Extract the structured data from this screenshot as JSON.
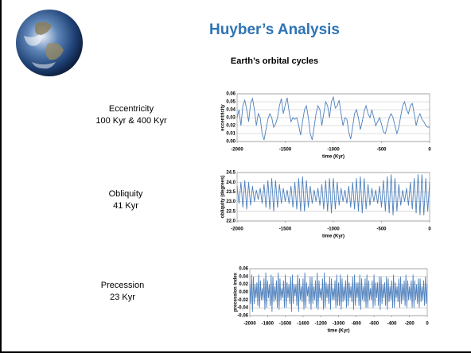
{
  "title": "Huyber’s Analysis",
  "subtitle": "Earth’s orbital cycles",
  "captions": [
    [
      "Eccentricity",
      "100 Kyr & 400 Kyr"
    ],
    [
      "Obliquity",
      "41 Kyr"
    ],
    [
      "Precession",
      "23 Kyr"
    ]
  ],
  "chart_data": [
    {
      "type": "line",
      "ylabel": "eccentricity",
      "xlabel": "time (Kyr)",
      "color": "#4f81bd",
      "grid": true,
      "xlim": [
        -2000,
        0
      ],
      "xticks": [
        -2000,
        -1500,
        -1000,
        -500,
        0
      ],
      "ylim": [
        0,
        0.06
      ],
      "yticks": [
        {
          "value": 0,
          "label": "0.00"
        },
        0.01,
        0.02,
        0.03,
        0.04,
        0.05,
        0.06
      ],
      "x": [
        -2000,
        -1980,
        -1960,
        -1940,
        -1920,
        -1900,
        -1880,
        -1860,
        -1840,
        -1820,
        -1800,
        -1780,
        -1760,
        -1740,
        -1720,
        -1700,
        -1680,
        -1660,
        -1640,
        -1620,
        -1600,
        -1580,
        -1560,
        -1540,
        -1520,
        -1500,
        -1480,
        -1460,
        -1440,
        -1420,
        -1400,
        -1380,
        -1360,
        -1340,
        -1320,
        -1300,
        -1280,
        -1260,
        -1240,
        -1220,
        -1200,
        -1180,
        -1160,
        -1140,
        -1120,
        -1100,
        -1080,
        -1060,
        -1040,
        -1020,
        -1000,
        -980,
        -960,
        -940,
        -920,
        -900,
        -880,
        -860,
        -840,
        -820,
        -800,
        -780,
        -760,
        -740,
        -720,
        -700,
        -680,
        -660,
        -640,
        -620,
        -600,
        -580,
        -560,
        -540,
        -520,
        -500,
        -480,
        -460,
        -440,
        -420,
        -400,
        -380,
        -360,
        -340,
        -320,
        -300,
        -280,
        -260,
        -240,
        -220,
        -200,
        -180,
        -160,
        -140,
        -120,
        -100,
        -80,
        -60,
        -40,
        -20,
        0
      ],
      "values": [
        0.03,
        0.04,
        0.02,
        0.045,
        0.052,
        0.04,
        0.025,
        0.048,
        0.054,
        0.04,
        0.02,
        0.035,
        0.03,
        0.01,
        0.002,
        0.015,
        0.028,
        0.035,
        0.03,
        0.018,
        0.022,
        0.03,
        0.045,
        0.054,
        0.035,
        0.046,
        0.055,
        0.038,
        0.025,
        0.03,
        0.028,
        0.03,
        0.02,
        0.008,
        0.025,
        0.04,
        0.045,
        0.03,
        0.01,
        0.002,
        0.018,
        0.035,
        0.045,
        0.04,
        0.02,
        0.035,
        0.05,
        0.045,
        0.03,
        0.05,
        0.056,
        0.042,
        0.045,
        0.052,
        0.035,
        0.02,
        0.03,
        0.028,
        0.012,
        0.003,
        0.018,
        0.035,
        0.04,
        0.03,
        0.015,
        0.025,
        0.038,
        0.045,
        0.035,
        0.03,
        0.04,
        0.03,
        0.02,
        0.025,
        0.03,
        0.022,
        0.012,
        0.01,
        0.02,
        0.03,
        0.035,
        0.03,
        0.02,
        0.01,
        0.018,
        0.032,
        0.045,
        0.05,
        0.04,
        0.035,
        0.045,
        0.048,
        0.035,
        0.02,
        0.03,
        0.035,
        0.028,
        0.025,
        0.02,
        0.018,
        0.018
      ]
    },
    {
      "type": "line",
      "ylabel": "obliquity (degrees)",
      "xlabel": "time (Kyr)",
      "color": "#4f81bd",
      "grid": true,
      "xlim": [
        -2000,
        0
      ],
      "xticks": [
        -2000,
        -1500,
        -1000,
        -500,
        0
      ],
      "ylim": [
        22,
        24.5
      ],
      "yticks": [
        {
          "value": 22,
          "label": "22.0"
        },
        22.5,
        {
          "value": 23,
          "label": "23.0"
        },
        23.5,
        {
          "value": 24,
          "label": "24.0"
        },
        24.5
      ],
      "x": [
        -2000,
        -1980,
        -1960,
        -1940,
        -1920,
        -1900,
        -1880,
        -1860,
        -1840,
        -1820,
        -1800,
        -1780,
        -1760,
        -1740,
        -1720,
        -1700,
        -1680,
        -1660,
        -1640,
        -1620,
        -1600,
        -1580,
        -1560,
        -1540,
        -1520,
        -1500,
        -1480,
        -1460,
        -1440,
        -1420,
        -1400,
        -1380,
        -1360,
        -1340,
        -1320,
        -1300,
        -1280,
        -1260,
        -1240,
        -1220,
        -1200,
        -1180,
        -1160,
        -1140,
        -1120,
        -1100,
        -1080,
        -1060,
        -1040,
        -1020,
        -1000,
        -980,
        -960,
        -940,
        -920,
        -900,
        -880,
        -860,
        -840,
        -820,
        -800,
        -780,
        -760,
        -740,
        -720,
        -700,
        -680,
        -660,
        -640,
        -620,
        -600,
        -580,
        -560,
        -540,
        -520,
        -500,
        -480,
        -460,
        -440,
        -420,
        -400,
        -380,
        -360,
        -340,
        -320,
        -300,
        -280,
        -260,
        -240,
        -220,
        -200,
        -180,
        -160,
        -140,
        -120,
        -100,
        -80,
        -60,
        -40,
        -20,
        0
      ],
      "values": [
        23.8,
        22.9,
        24.0,
        22.7,
        24.1,
        22.6,
        24.0,
        22.8,
        23.8,
        23.0,
        23.6,
        23.1,
        23.7,
        22.9,
        23.9,
        22.7,
        24.1,
        22.6,
        24.2,
        22.5,
        24.1,
        22.7,
        23.9,
        22.9,
        23.7,
        23.0,
        23.6,
        22.9,
        23.8,
        22.7,
        24.0,
        22.6,
        24.2,
        22.5,
        24.3,
        22.5,
        24.1,
        22.7,
        23.8,
        22.9,
        23.6,
        23.0,
        23.7,
        22.8,
        23.9,
        22.6,
        24.1,
        22.5,
        24.2,
        22.4,
        24.2,
        22.6,
        24.0,
        22.8,
        23.7,
        23.0,
        23.6,
        22.9,
        23.8,
        22.7,
        24.0,
        22.6,
        24.2,
        22.5,
        24.3,
        22.4,
        24.2,
        22.6,
        23.9,
        22.8,
        23.7,
        23.0,
        23.6,
        22.9,
        23.8,
        22.7,
        24.1,
        22.5,
        24.3,
        22.4,
        24.4,
        22.3,
        24.2,
        22.5,
        23.9,
        22.8,
        23.6,
        23.0,
        23.7,
        22.8,
        24.0,
        22.6,
        24.2,
        22.4,
        24.4,
        22.3,
        24.4,
        22.3,
        24.2,
        22.5,
        24.0
      ]
    },
    {
      "type": "line",
      "ylabel": "precession index",
      "xlabel": "time (Kyr)",
      "color": "#4f81bd",
      "grid": true,
      "xlim": [
        -2000,
        0
      ],
      "xticks": [
        -2000,
        -1800,
        -1600,
        -1400,
        -1200,
        -1000,
        -800,
        -600,
        -400,
        -200,
        0
      ],
      "ylim": [
        -0.06,
        0.06
      ],
      "yticks": [
        -0.06,
        -0.04,
        -0.02,
        {
          "value": 0,
          "label": "0.00"
        },
        0.02,
        0.04,
        0.06
      ],
      "x": [
        -2000,
        -1990,
        -1980,
        -1970,
        -1960,
        -1950,
        -1940,
        -1930,
        -1920,
        -1910,
        -1900,
        -1890,
        -1880,
        -1870,
        -1860,
        -1850,
        -1840,
        -1830,
        -1820,
        -1810,
        -1800,
        -1790,
        -1780,
        -1770,
        -1760,
        -1750,
        -1740,
        -1730,
        -1720,
        -1710,
        -1700,
        -1690,
        -1680,
        -1670,
        -1660,
        -1650,
        -1640,
        -1630,
        -1620,
        -1610,
        -1600,
        -1590,
        -1580,
        -1570,
        -1560,
        -1550,
        -1540,
        -1530,
        -1520,
        -1510,
        -1500,
        -1490,
        -1480,
        -1470,
        -1460,
        -1450,
        -1440,
        -1430,
        -1420,
        -1410,
        -1400,
        -1390,
        -1380,
        -1370,
        -1360,
        -1350,
        -1340,
        -1330,
        -1320,
        -1310,
        -1300,
        -1290,
        -1280,
        -1270,
        -1260,
        -1250,
        -1240,
        -1230,
        -1220,
        -1210,
        -1200,
        -1190,
        -1180,
        -1170,
        -1160,
        -1150,
        -1140,
        -1130,
        -1120,
        -1110,
        -1100,
        -1090,
        -1080,
        -1070,
        -1060,
        -1050,
        -1040,
        -1030,
        -1020,
        -1010,
        -1000,
        -990,
        -980,
        -970,
        -960,
        -950,
        -940,
        -930,
        -920,
        -910,
        -900,
        -890,
        -880,
        -870,
        -860,
        -850,
        -840,
        -830,
        -820,
        -810,
        -800,
        -790,
        -780,
        -770,
        -760,
        -750,
        -740,
        -730,
        -720,
        -710,
        -700,
        -690,
        -680,
        -670,
        -660,
        -650,
        -640,
        -630,
        -620,
        -610,
        -600,
        -590,
        -580,
        -570,
        -560,
        -550,
        -540,
        -530,
        -520,
        -510,
        -500,
        -490,
        -480,
        -470,
        -460,
        -450,
        -440,
        -430,
        -420,
        -410,
        -400,
        -390,
        -380,
        -370,
        -360,
        -350,
        -340,
        -330,
        -320,
        -310,
        -300,
        -290,
        -280,
        -270,
        -260,
        -250,
        -240,
        -230,
        -220,
        -210,
        -200,
        -190,
        -180,
        -170,
        -160,
        -150,
        -140,
        -130,
        -120,
        -110,
        -100,
        -90,
        -80,
        -70,
        -60,
        -50,
        -40,
        -30,
        -20,
        -10,
        0
      ],
      "values": [
        0.02,
        -0.03,
        0.045,
        -0.05,
        0.04,
        -0.03,
        0.02,
        -0.015,
        0.025,
        -0.035,
        0.045,
        -0.04,
        0.03,
        -0.02,
        0.01,
        -0.02,
        0.035,
        -0.045,
        0.05,
        -0.04,
        0.03,
        -0.015,
        0.02,
        -0.035,
        0.045,
        -0.05,
        0.04,
        -0.025,
        0.015,
        -0.02,
        0.03,
        -0.04,
        0.05,
        -0.045,
        0.035,
        -0.02,
        0.01,
        -0.015,
        0.03,
        -0.04,
        0.045,
        -0.04,
        0.025,
        -0.015,
        0.02,
        -0.03,
        0.04,
        -0.05,
        0.045,
        -0.03,
        0.02,
        -0.01,
        0.02,
        -0.035,
        0.045,
        -0.05,
        0.035,
        -0.02,
        0.015,
        -0.025,
        0.035,
        -0.045,
        0.05,
        -0.04,
        0.025,
        -0.01,
        0.015,
        -0.03,
        0.04,
        -0.045,
        0.04,
        -0.03,
        0.015,
        -0.02,
        0.03,
        -0.04,
        0.05,
        -0.045,
        0.03,
        -0.015,
        0.01,
        -0.02,
        0.035,
        -0.045,
        0.05,
        -0.04,
        0.025,
        -0.015,
        0.02,
        -0.03,
        0.04,
        -0.045,
        0.035,
        -0.02,
        0.01,
        -0.02,
        0.03,
        -0.04,
        0.045,
        -0.035,
        0.025,
        -0.035,
        0.045,
        -0.045,
        0.035,
        -0.025,
        0.015,
        -0.02,
        0.03,
        -0.04,
        0.045,
        -0.035,
        0.025,
        -0.015,
        0.015,
        -0.025,
        0.04,
        -0.045,
        0.045,
        -0.035,
        0.025,
        -0.015,
        0.025,
        -0.035,
        0.045,
        -0.045,
        0.035,
        -0.02,
        0.015,
        -0.025,
        0.035,
        -0.04,
        0.045,
        -0.04,
        0.03,
        -0.02,
        0.01,
        -0.02,
        0.03,
        -0.04,
        0.045,
        -0.035,
        0.025,
        -0.015,
        0.025,
        -0.035,
        0.04,
        -0.045,
        0.04,
        -0.03,
        0.02,
        -0.015,
        0.025,
        -0.035,
        0.04,
        -0.045,
        0.035,
        -0.025,
        0.015,
        -0.02,
        0.03,
        -0.04,
        0.045,
        -0.04,
        0.025,
        -0.015,
        0.015,
        -0.025,
        0.035,
        -0.04,
        0.04,
        -0.03,
        0.02,
        -0.02,
        0.03,
        -0.035,
        0.045,
        -0.04,
        0.03,
        -0.02,
        0.015,
        -0.02,
        0.03,
        -0.04,
        0.045,
        -0.04,
        0.03,
        -0.02,
        0.02,
        -0.03,
        0.035,
        -0.04,
        0.035,
        -0.025,
        0.015,
        -0.02,
        0.03,
        -0.035,
        0.04,
        -0.03,
        0.02
      ]
    }
  ]
}
